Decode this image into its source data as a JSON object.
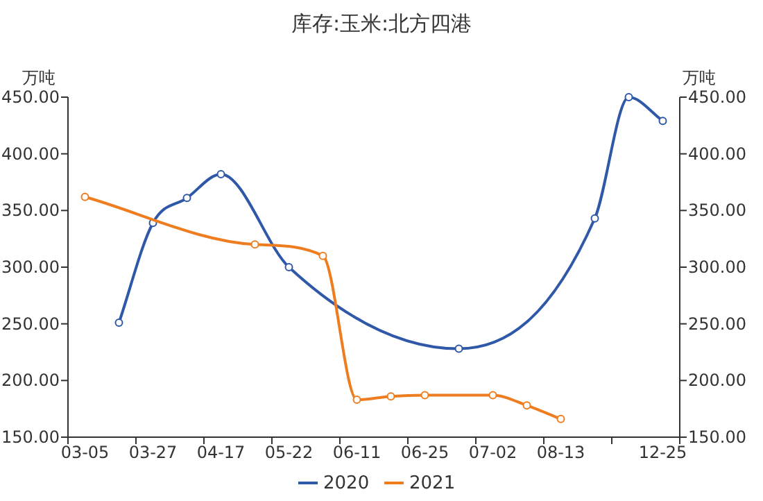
{
  "chart_data": {
    "type": "line",
    "title": "库存:玉米:北方四港",
    "ylabel": "万吨",
    "y2label": "万吨",
    "categories": [
      "03-05",
      null,
      "03-27",
      null,
      "04-17",
      null,
      "05-22",
      null,
      "06-11",
      null,
      "06-25",
      null,
      "07-02",
      null,
      "08-13",
      null,
      null,
      "12-25"
    ],
    "series": [
      {
        "name": "2020",
        "color": "#2f58a8",
        "values": [
          null,
          251,
          339,
          361,
          382,
          null,
          300,
          null,
          null,
          null,
          null,
          228,
          null,
          null,
          null,
          343,
          450,
          429
        ]
      },
      {
        "name": "2021",
        "color": "#ee7d1f",
        "values": [
          362,
          null,
          null,
          null,
          null,
          320,
          null,
          310,
          183,
          186,
          187,
          null,
          187,
          178,
          166,
          null,
          null,
          null
        ]
      }
    ],
    "ylim": [
      150,
      450
    ],
    "yticks": [
      {
        "value": 150,
        "label": "150.00"
      },
      {
        "value": 200,
        "label": "200.00"
      },
      {
        "value": 250,
        "label": "250.00"
      },
      {
        "value": 300,
        "label": "300.00"
      },
      {
        "value": 350,
        "label": "350.00"
      },
      {
        "value": 400,
        "label": "400.00"
      },
      {
        "value": 450,
        "label": "450.00"
      }
    ],
    "y2lim": [
      150,
      450
    ],
    "y2ticks": [
      {
        "value": 150,
        "label": "150.00"
      },
      {
        "value": 200,
        "label": "200.00"
      },
      {
        "value": 250,
        "label": "250.00"
      },
      {
        "value": 300,
        "label": "300.00"
      },
      {
        "value": 350,
        "label": "350.00"
      },
      {
        "value": 400,
        "label": "400.00"
      },
      {
        "value": 450,
        "label": "450.00"
      }
    ],
    "grid": false,
    "legend": "bottom",
    "marker": "circle",
    "line_style": "solid"
  }
}
